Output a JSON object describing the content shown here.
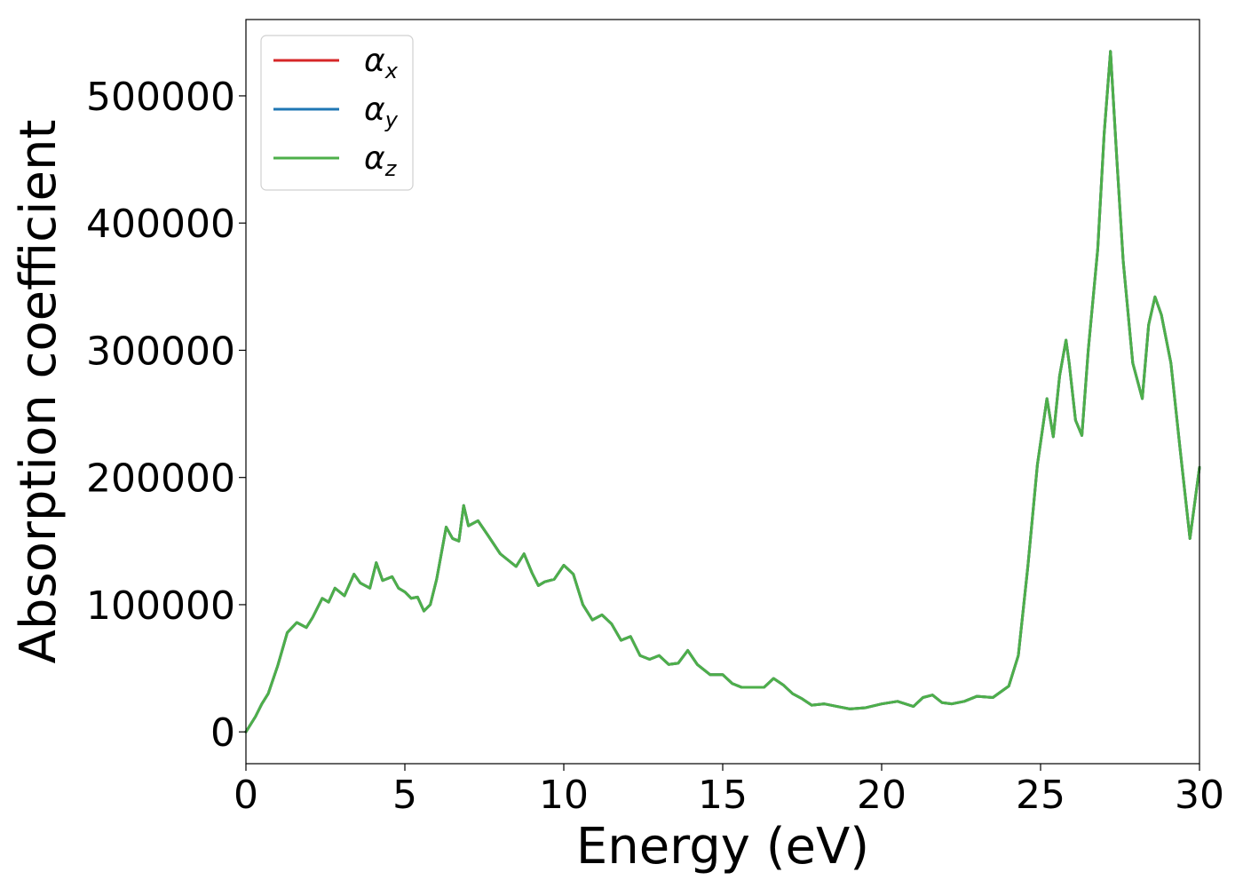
{
  "chart_data": {
    "type": "line",
    "title": "",
    "xlabel": "Energy (eV)",
    "ylabel": "Absorption coefficient",
    "xlim": [
      0,
      30
    ],
    "ylim": [
      -25000,
      560000
    ],
    "xticks": [
      0,
      5,
      10,
      15,
      20,
      25,
      30
    ],
    "yticks": [
      0,
      100000,
      200000,
      300000,
      400000,
      500000
    ],
    "xtick_labels": [
      "0",
      "5",
      "10",
      "15",
      "20",
      "25",
      "30"
    ],
    "ytick_labels": [
      "0",
      "100000",
      "200000",
      "300000",
      "400000",
      "500000"
    ],
    "grid": false,
    "legend_position": "top-left",
    "legend": [
      {
        "symbol": "α",
        "sub": "x",
        "color": "#d62728"
      },
      {
        "symbol": "α",
        "sub": "y",
        "color": "#1f77b4"
      },
      {
        "symbol": "α",
        "sub": "z",
        "color": "#4daf4a"
      }
    ],
    "x": [
      0,
      0.3,
      0.5,
      0.7,
      1.0,
      1.3,
      1.6,
      1.9,
      2.1,
      2.4,
      2.6,
      2.8,
      3.1,
      3.4,
      3.6,
      3.9,
      4.1,
      4.3,
      4.6,
      4.8,
      5.0,
      5.2,
      5.4,
      5.6,
      5.8,
      6.0,
      6.3,
      6.5,
      6.7,
      6.85,
      7.0,
      7.3,
      7.6,
      8.0,
      8.3,
      8.5,
      8.75,
      9.0,
      9.2,
      9.4,
      9.7,
      10.0,
      10.3,
      10.6,
      10.9,
      11.2,
      11.5,
      11.8,
      12.1,
      12.4,
      12.7,
      13.0,
      13.3,
      13.6,
      13.9,
      14.2,
      14.6,
      15.0,
      15.3,
      15.6,
      16.0,
      16.3,
      16.6,
      16.9,
      17.2,
      17.5,
      17.8,
      18.2,
      18.6,
      19.0,
      19.5,
      20.0,
      20.5,
      21.0,
      21.3,
      21.6,
      21.9,
      22.2,
      22.6,
      23.0,
      23.5,
      24.0,
      24.3,
      24.6,
      24.9,
      25.2,
      25.4,
      25.6,
      25.8,
      25.9,
      26.1,
      26.3,
      26.5,
      26.8,
      27.0,
      27.2,
      27.4,
      27.6,
      27.9,
      28.2,
      28.4,
      28.6,
      28.8,
      29.1,
      29.4,
      29.7,
      30.0
    ],
    "series": [
      {
        "name": "αx",
        "color": "#d62728",
        "values": [
          0,
          12000,
          22000,
          30000,
          52000,
          78000,
          86000,
          82000,
          90000,
          105000,
          102000,
          113000,
          107000,
          124000,
          117000,
          113000,
          133000,
          119000,
          122000,
          113000,
          110000,
          105000,
          106000,
          95000,
          100000,
          120000,
          161000,
          152000,
          150000,
          178000,
          162000,
          166000,
          155000,
          140000,
          134000,
          130000,
          140000,
          125000,
          115000,
          118000,
          120000,
          131000,
          124000,
          100000,
          88000,
          92000,
          85000,
          72000,
          75000,
          60000,
          57000,
          60000,
          53000,
          54000,
          64000,
          53000,
          45000,
          45000,
          38000,
          35000,
          35000,
          35000,
          42000,
          37000,
          30000,
          26000,
          21000,
          22000,
          20000,
          18000,
          19000,
          22000,
          24000,
          20000,
          27000,
          29000,
          23000,
          22000,
          24000,
          28000,
          27000,
          36000,
          60000,
          130000,
          210000,
          262000,
          232000,
          280000,
          308000,
          290000,
          245000,
          233000,
          300000,
          380000,
          470000,
          535000,
          450000,
          370000,
          290000,
          262000,
          320000,
          342000,
          328000,
          290000,
          220000,
          152000,
          208000
        ]
      },
      {
        "name": "αy",
        "color": "#1f77b4",
        "values": [
          0,
          12000,
          22000,
          30000,
          52000,
          78000,
          86000,
          82000,
          90000,
          105000,
          102000,
          113000,
          107000,
          124000,
          117000,
          113000,
          133000,
          119000,
          122000,
          113000,
          110000,
          105000,
          106000,
          95000,
          100000,
          120000,
          161000,
          152000,
          150000,
          178000,
          162000,
          166000,
          155000,
          140000,
          134000,
          130000,
          140000,
          125000,
          115000,
          118000,
          120000,
          131000,
          124000,
          100000,
          88000,
          92000,
          85000,
          72000,
          75000,
          60000,
          57000,
          60000,
          53000,
          54000,
          64000,
          53000,
          45000,
          45000,
          38000,
          35000,
          35000,
          35000,
          42000,
          37000,
          30000,
          26000,
          21000,
          22000,
          20000,
          18000,
          19000,
          22000,
          24000,
          20000,
          27000,
          29000,
          23000,
          22000,
          24000,
          28000,
          27000,
          36000,
          60000,
          130000,
          210000,
          262000,
          232000,
          280000,
          308000,
          290000,
          245000,
          233000,
          300000,
          380000,
          470000,
          535000,
          450000,
          370000,
          290000,
          262000,
          320000,
          342000,
          328000,
          290000,
          220000,
          152000,
          208000
        ]
      },
      {
        "name": "αz",
        "color": "#4daf4a",
        "values": [
          0,
          12000,
          22000,
          30000,
          52000,
          78000,
          86000,
          82000,
          90000,
          105000,
          102000,
          113000,
          107000,
          124000,
          117000,
          113000,
          133000,
          119000,
          122000,
          113000,
          110000,
          105000,
          106000,
          95000,
          100000,
          120000,
          161000,
          152000,
          150000,
          178000,
          162000,
          166000,
          155000,
          140000,
          134000,
          130000,
          140000,
          125000,
          115000,
          118000,
          120000,
          131000,
          124000,
          100000,
          88000,
          92000,
          85000,
          72000,
          75000,
          60000,
          57000,
          60000,
          53000,
          54000,
          64000,
          53000,
          45000,
          45000,
          38000,
          35000,
          35000,
          35000,
          42000,
          37000,
          30000,
          26000,
          21000,
          22000,
          20000,
          18000,
          19000,
          22000,
          24000,
          20000,
          27000,
          29000,
          23000,
          22000,
          24000,
          28000,
          27000,
          36000,
          60000,
          130000,
          210000,
          262000,
          232000,
          280000,
          308000,
          290000,
          245000,
          233000,
          300000,
          380000,
          470000,
          535000,
          450000,
          370000,
          290000,
          262000,
          320000,
          342000,
          328000,
          290000,
          220000,
          152000,
          208000
        ]
      }
    ]
  }
}
